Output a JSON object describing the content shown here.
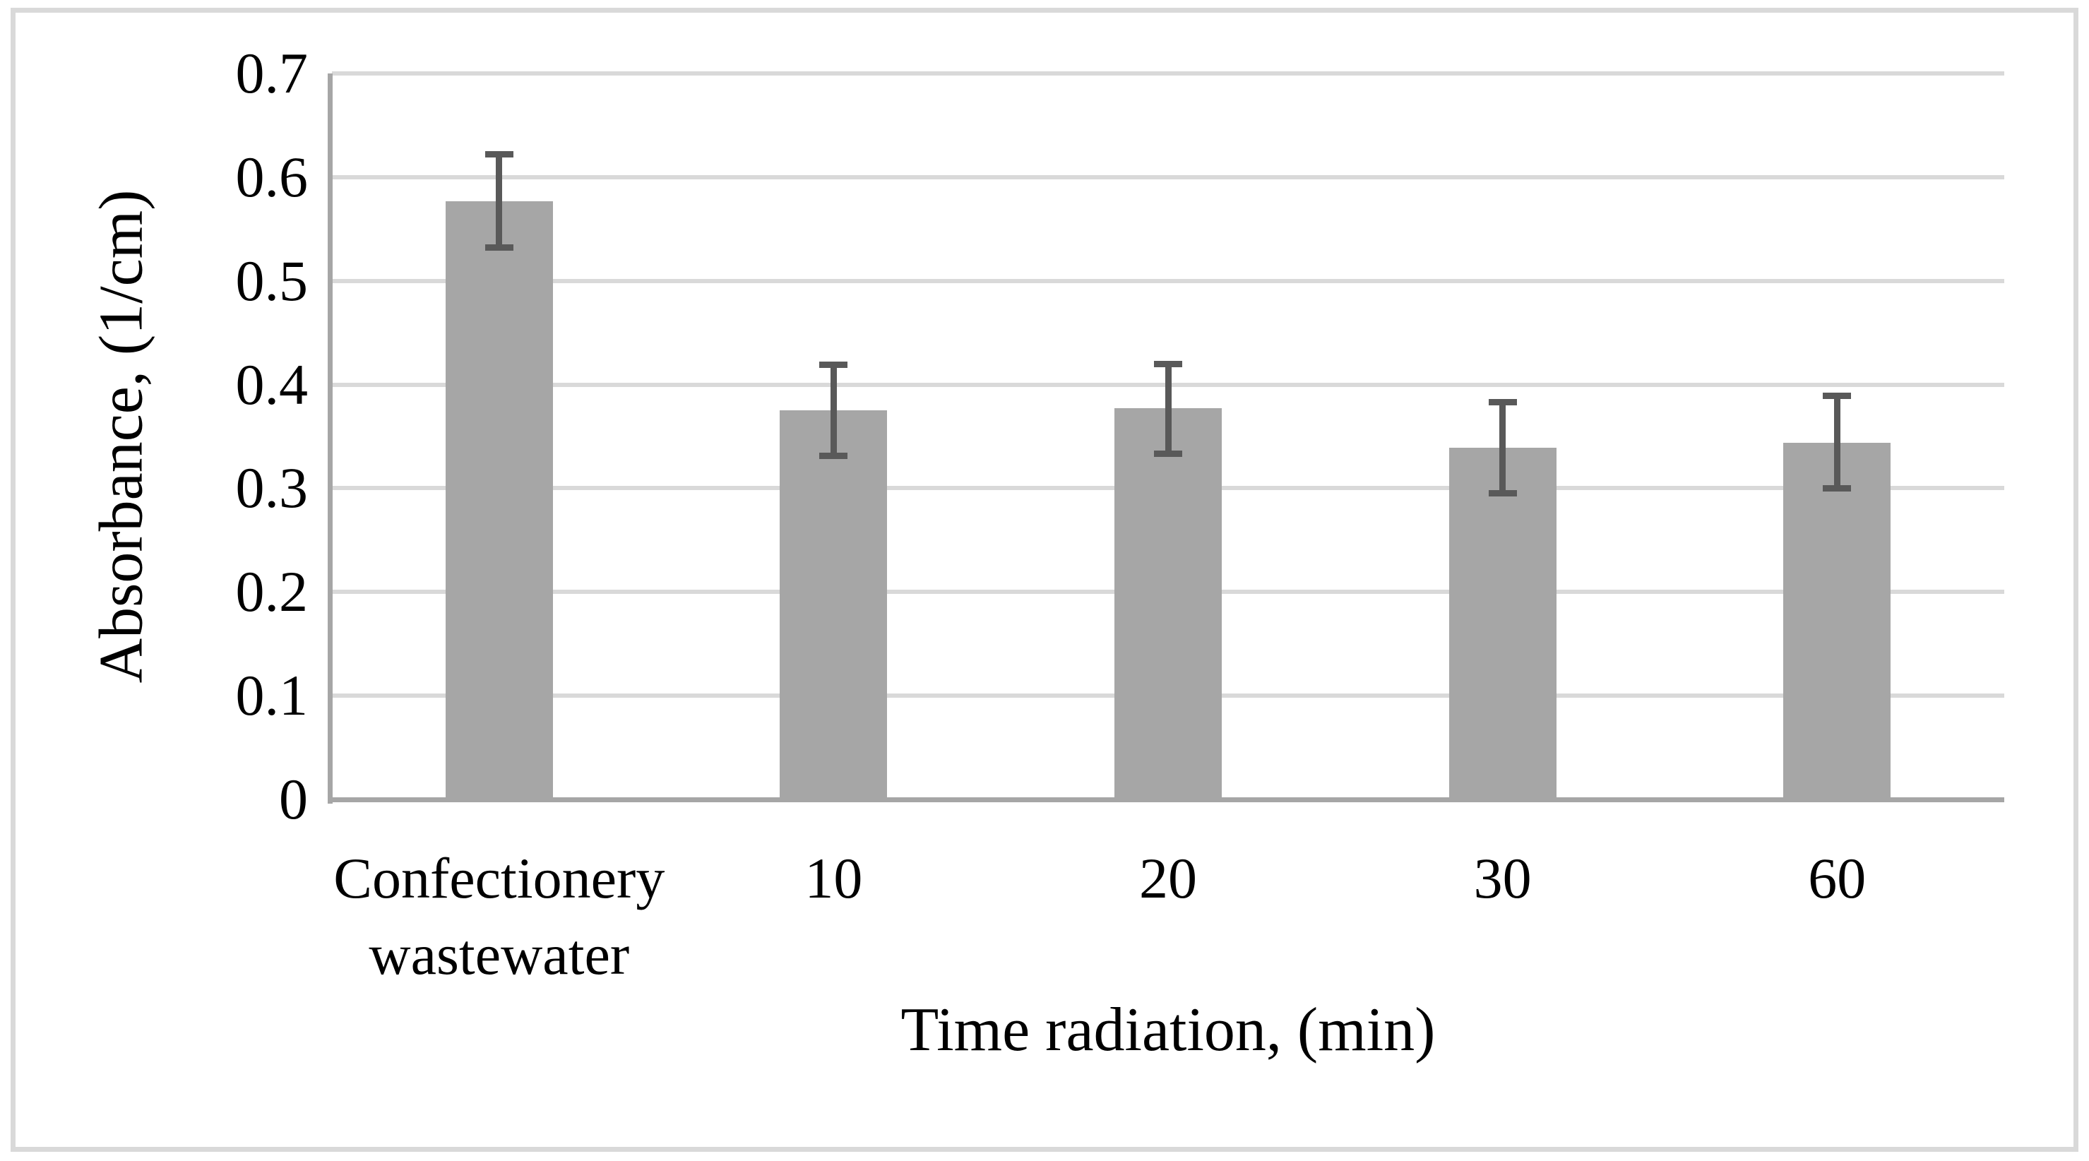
{
  "colors": {
    "bar_fill": "#a6a6a6",
    "error_bar": "#595959",
    "gridline": "#d9d9d9",
    "axis_line": "#a6a6a6",
    "frame_border": "#d9d9d9",
    "text": "#000000",
    "background": "#ffffff"
  },
  "chart_data": {
    "type": "bar",
    "title": "",
    "xlabel": "Time radiation, (min)",
    "ylabel": "Absorbance, (1/cm)",
    "categories": [
      "Confectionery wastewater",
      "10",
      "20",
      "30",
      "60"
    ],
    "category_label_lines": [
      [
        "Confectionery",
        "wastewater"
      ],
      [
        "10"
      ],
      [
        "20"
      ],
      [
        "30"
      ],
      [
        "60"
      ]
    ],
    "values": [
      0.577,
      0.375,
      0.377,
      0.339,
      0.344
    ],
    "error_bars": [
      {
        "low": 0.532,
        "high": 0.622
      },
      {
        "low": 0.331,
        "high": 0.419
      },
      {
        "low": 0.333,
        "high": 0.42
      },
      {
        "low": 0.295,
        "high": 0.383
      },
      {
        "low": 0.3,
        "high": 0.389
      }
    ],
    "ylim": [
      0,
      0.7
    ],
    "ytick_values": [
      0.7,
      0.6,
      0.5,
      0.4,
      0.3,
      0.2,
      0.1,
      0
    ],
    "ytick_labels": [
      "0.7",
      "0.6",
      "0.5",
      "0.4",
      "0.3",
      "0.2",
      "0.1",
      "0"
    ],
    "grid": true,
    "legend": false,
    "bar_color_note": "single gray series, no legend shown"
  }
}
